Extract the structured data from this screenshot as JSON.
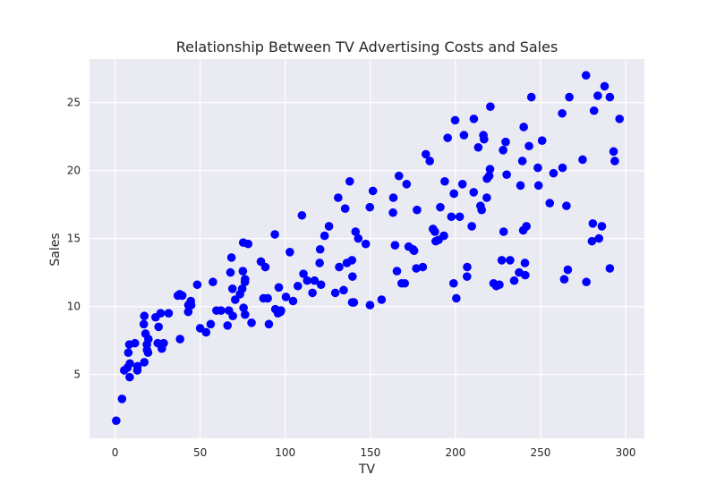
{
  "chart_data": {
    "type": "scatter",
    "title": "Relationship Between TV Advertising Costs and Sales",
    "xlabel": "TV",
    "ylabel": "Sales",
    "xlim": [
      -15,
      311
    ],
    "ylim": [
      0.3,
      28.2
    ],
    "xticks": [
      0,
      50,
      100,
      150,
      200,
      250,
      300
    ],
    "yticks": [
      5,
      10,
      15,
      20,
      25
    ],
    "grid": true,
    "marker_color": "#0000ff",
    "plot_background": "#eaeaf2",
    "grid_color": "#ffffff",
    "points": [
      [
        0.7,
        1.6
      ],
      [
        4.1,
        3.2
      ],
      [
        5.4,
        5.3
      ],
      [
        7.3,
        5.5
      ],
      [
        7.8,
        6.6
      ],
      [
        8.4,
        7.2
      ],
      [
        8.6,
        4.8
      ],
      [
        8.7,
        5.8
      ],
      [
        11.7,
        7.3
      ],
      [
        13.1,
        5.3
      ],
      [
        13.2,
        5.6
      ],
      [
        16.9,
        8.7
      ],
      [
        17.2,
        9.3
      ],
      [
        17.2,
        5.9
      ],
      [
        17.9,
        8.0
      ],
      [
        18.7,
        7.2
      ],
      [
        18.8,
        6.8
      ],
      [
        19.4,
        6.6
      ],
      [
        19.6,
        7.6
      ],
      [
        23.8,
        9.2
      ],
      [
        25.1,
        7.3
      ],
      [
        25.6,
        8.5
      ],
      [
        26.8,
        9.5
      ],
      [
        27.5,
        6.9
      ],
      [
        28.6,
        7.3
      ],
      [
        31.5,
        9.5
      ],
      [
        36.9,
        10.8
      ],
      [
        38.0,
        10.9
      ],
      [
        38.2,
        7.6
      ],
      [
        39.5,
        10.8
      ],
      [
        43.0,
        9.6
      ],
      [
        43.1,
        10.1
      ],
      [
        44.5,
        10.4
      ],
      [
        44.7,
        10.1
      ],
      [
        48.3,
        11.6
      ],
      [
        50.0,
        8.4
      ],
      [
        53.5,
        8.1
      ],
      [
        56.2,
        8.7
      ],
      [
        57.5,
        11.8
      ],
      [
        59.6,
        9.7
      ],
      [
        62.3,
        9.7
      ],
      [
        66.1,
        8.6
      ],
      [
        66.9,
        9.7
      ],
      [
        67.8,
        12.5
      ],
      [
        68.4,
        13.6
      ],
      [
        69.0,
        11.3
      ],
      [
        69.2,
        9.3
      ],
      [
        70.6,
        10.5
      ],
      [
        73.4,
        10.9
      ],
      [
        74.7,
        11.3
      ],
      [
        75.1,
        12.6
      ],
      [
        75.3,
        14.7
      ],
      [
        75.5,
        9.9
      ],
      [
        76.3,
        11.8
      ],
      [
        76.4,
        12.0
      ],
      [
        76.4,
        9.4
      ],
      [
        78.2,
        14.6
      ],
      [
        80.2,
        8.8
      ],
      [
        85.7,
        13.3
      ],
      [
        87.2,
        10.6
      ],
      [
        88.3,
        12.9
      ],
      [
        89.7,
        10.6
      ],
      [
        90.4,
        8.7
      ],
      [
        93.9,
        15.3
      ],
      [
        94.2,
        9.8
      ],
      [
        95.7,
        9.5
      ],
      [
        96.2,
        11.4
      ],
      [
        97.2,
        9.6
      ],
      [
        97.5,
        9.7
      ],
      [
        100.4,
        10.7
      ],
      [
        102.7,
        14.0
      ],
      [
        104.6,
        10.4
      ],
      [
        107.4,
        11.5
      ],
      [
        109.8,
        16.7
      ],
      [
        110.7,
        12.4
      ],
      [
        112.9,
        11.9
      ],
      [
        116.0,
        11.0
      ],
      [
        117.2,
        11.9
      ],
      [
        120.2,
        13.2
      ],
      [
        120.5,
        14.2
      ],
      [
        121.0,
        11.6
      ],
      [
        123.1,
        15.2
      ],
      [
        125.7,
        15.9
      ],
      [
        129.4,
        11.0
      ],
      [
        131.1,
        18.0
      ],
      [
        131.7,
        12.9
      ],
      [
        134.3,
        11.2
      ],
      [
        135.2,
        17.2
      ],
      [
        136.2,
        13.2
      ],
      [
        137.9,
        19.2
      ],
      [
        139.2,
        13.4
      ],
      [
        139.3,
        10.3
      ],
      [
        139.5,
        12.2
      ],
      [
        140.3,
        10.3
      ],
      [
        141.3,
        15.5
      ],
      [
        142.9,
        15.0
      ],
      [
        147.3,
        14.6
      ],
      [
        149.7,
        17.3
      ],
      [
        149.8,
        10.1
      ],
      [
        151.5,
        18.5
      ],
      [
        156.6,
        10.5
      ],
      [
        163.3,
        16.9
      ],
      [
        163.5,
        18.0
      ],
      [
        164.5,
        14.5
      ],
      [
        165.6,
        12.6
      ],
      [
        166.8,
        19.6
      ],
      [
        168.4,
        11.7
      ],
      [
        170.2,
        11.7
      ],
      [
        171.3,
        19.0
      ],
      [
        172.5,
        14.4
      ],
      [
        175.1,
        14.2
      ],
      [
        175.7,
        14.1
      ],
      [
        177.0,
        12.8
      ],
      [
        177.4,
        17.1
      ],
      [
        180.8,
        12.9
      ],
      [
        182.6,
        21.2
      ],
      [
        184.9,
        20.7
      ],
      [
        186.8,
        15.7
      ],
      [
        187.9,
        15.5
      ],
      [
        188.4,
        14.8
      ],
      [
        190.1,
        14.9
      ],
      [
        191.1,
        17.3
      ],
      [
        193.2,
        15.2
      ],
      [
        193.7,
        19.2
      ],
      [
        195.4,
        22.4
      ],
      [
        197.6,
        16.6
      ],
      [
        198.9,
        11.7
      ],
      [
        199.1,
        18.3
      ],
      [
        199.8,
        23.7
      ],
      [
        200.5,
        10.6
      ],
      [
        202.5,
        16.6
      ],
      [
        204.1,
        19.0
      ],
      [
        205.0,
        22.6
      ],
      [
        206.8,
        12.2
      ],
      [
        206.9,
        12.9
      ],
      [
        209.6,
        15.9
      ],
      [
        210.7,
        18.4
      ],
      [
        210.8,
        23.8
      ],
      [
        213.4,
        21.7
      ],
      [
        214.7,
        17.4
      ],
      [
        215.4,
        17.1
      ],
      [
        216.4,
        22.6
      ],
      [
        216.8,
        22.3
      ],
      [
        218.4,
        18.0
      ],
      [
        218.5,
        19.4
      ],
      [
        219.8,
        19.6
      ],
      [
        220.3,
        20.1
      ],
      [
        220.5,
        24.7
      ],
      [
        222.4,
        11.7
      ],
      [
        224.0,
        11.5
      ],
      [
        225.8,
        11.6
      ],
      [
        227.2,
        13.4
      ],
      [
        228.0,
        21.5
      ],
      [
        228.3,
        15.5
      ],
      [
        229.5,
        22.1
      ],
      [
        230.1,
        19.7
      ],
      [
        232.1,
        13.4
      ],
      [
        234.5,
        11.9
      ],
      [
        237.4,
        12.5
      ],
      [
        238.2,
        18.9
      ],
      [
        239.3,
        20.7
      ],
      [
        239.8,
        15.6
      ],
      [
        240.1,
        23.2
      ],
      [
        240.8,
        13.2
      ],
      [
        241.0,
        12.3
      ],
      [
        241.7,
        15.9
      ],
      [
        243.2,
        21.8
      ],
      [
        244.6,
        25.4
      ],
      [
        248.4,
        20.2
      ],
      [
        248.8,
        18.9
      ],
      [
        250.9,
        22.2
      ],
      [
        255.4,
        17.6
      ],
      [
        257.6,
        19.8
      ],
      [
        262.7,
        24.2
      ],
      [
        262.9,
        20.2
      ],
      [
        263.9,
        12.0
      ],
      [
        265.2,
        17.4
      ],
      [
        266.0,
        12.7
      ],
      [
        266.9,
        25.4
      ],
      [
        274.7,
        20.8
      ],
      [
        276.7,
        27.0
      ],
      [
        276.9,
        11.8
      ],
      [
        280.2,
        14.8
      ],
      [
        280.7,
        16.1
      ],
      [
        281.4,
        24.4
      ],
      [
        283.6,
        25.5
      ],
      [
        284.3,
        15.0
      ],
      [
        286.0,
        15.9
      ],
      [
        287.6,
        26.2
      ],
      [
        290.7,
        25.4
      ],
      [
        290.7,
        12.8
      ],
      [
        292.9,
        21.4
      ],
      [
        293.6,
        20.7
      ],
      [
        296.4,
        23.8
      ]
    ]
  }
}
